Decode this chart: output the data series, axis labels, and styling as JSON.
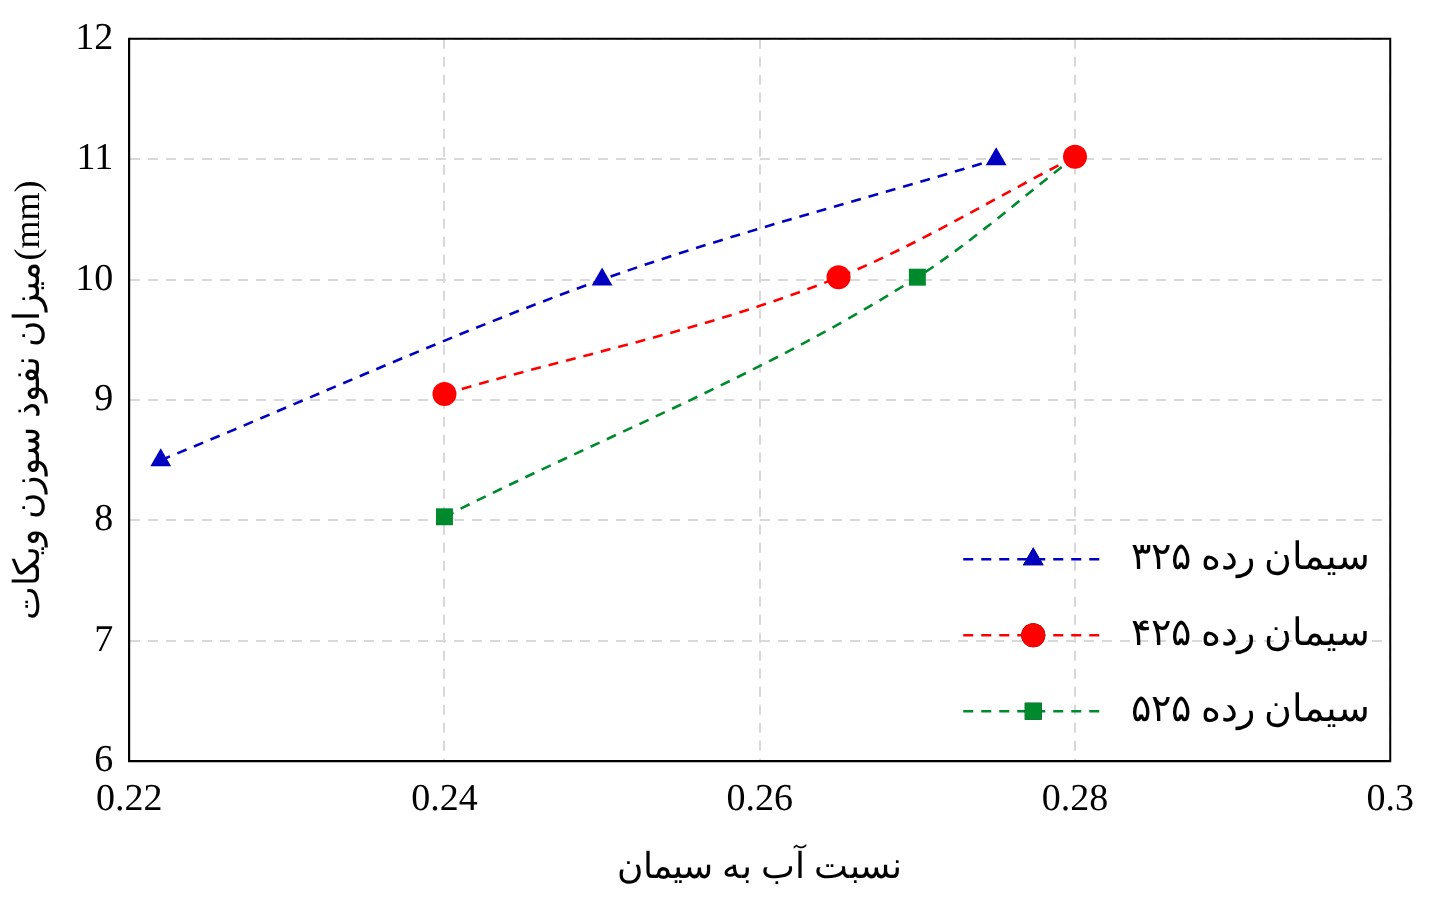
{
  "chart_data": {
    "type": "line",
    "xlabel": "نسبت آب به سیمان",
    "ylabel": "میزان نفوذ سوزن ویکات(mm)",
    "xlim": [
      0.22,
      0.3
    ],
    "xticks": [
      0.22,
      0.24,
      0.26,
      0.28,
      0.3
    ],
    "ylim": [
      6,
      12
    ],
    "yticks": [
      6,
      7,
      8,
      9,
      10,
      11,
      12
    ],
    "grid": true,
    "legend": "bottom right",
    "line_style": "dashed",
    "series": [
      {
        "name": "سیمان رده ۳۲۵",
        "color": "#0000c0",
        "marker": "triangle",
        "x": [
          0.222,
          0.25,
          0.275
        ],
        "values": [
          8.5,
          10,
          11
        ]
      },
      {
        "name": "سیمان رده ۴۲۵",
        "color": "#ff0000",
        "marker": "circle",
        "x": [
          0.24,
          0.265,
          0.28
        ],
        "values": [
          9.05,
          10.02,
          11.02
        ]
      },
      {
        "name": "سیمان رده ۵۲۵",
        "color": "#008a2e",
        "marker": "square",
        "x": [
          0.24,
          0.27,
          0.28
        ],
        "values": [
          8.03,
          10.02,
          11.02
        ]
      }
    ]
  }
}
